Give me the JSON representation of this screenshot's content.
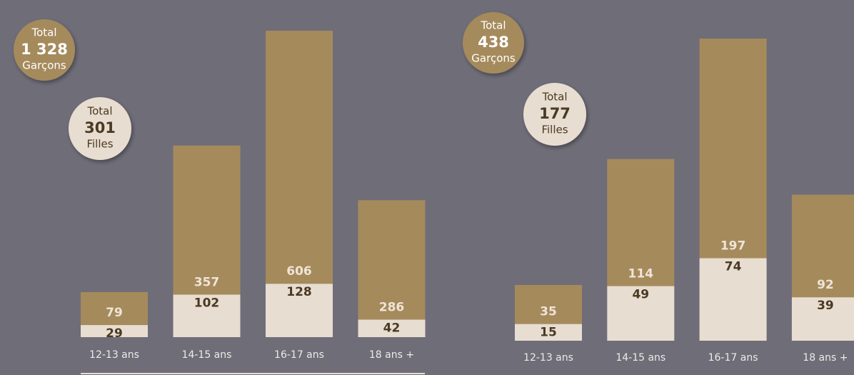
{
  "chart_data": [
    {
      "type": "bar",
      "stacked": true,
      "total_text": "Total",
      "total_boys": {
        "value": 1328,
        "label": "1 328"
      },
      "total_girls": 301,
      "categories": [
        "12-13 ans",
        "14-15 ans",
        "16-17 ans",
        "18 ans +"
      ],
      "series": [
        {
          "name": "Filles",
          "color": "#e8ddd1",
          "values": [
            29,
            102,
            128,
            42
          ]
        },
        {
          "name": "Garçons",
          "color": "#a58a5c",
          "values": [
            79,
            357,
            606,
            286
          ]
        }
      ]
    },
    {
      "type": "bar",
      "stacked": true,
      "total_text": "Total",
      "total_boys": 438,
      "total_girls": 177,
      "categories": [
        "12-13 ans",
        "14-15 ans",
        "16-17 ans",
        "18 ans +"
      ],
      "series": [
        {
          "name": "Filles",
          "color": "#e8ddd1",
          "values": [
            15,
            49,
            74,
            39
          ]
        },
        {
          "name": "Garçons",
          "color": "#a58a5c",
          "values": [
            35,
            114,
            197,
            92
          ]
        }
      ]
    }
  ]
}
